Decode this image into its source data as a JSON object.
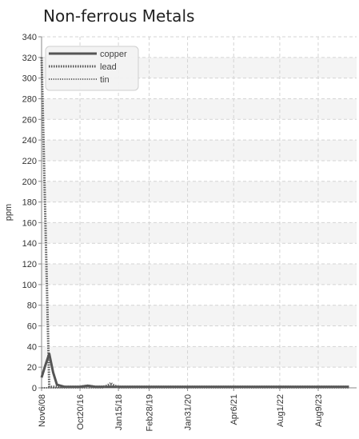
{
  "chart_data": {
    "type": "line",
    "title": "Non-ferrous Metals",
    "ylabel": "ppm",
    "xlabel": "",
    "ylim": [
      0,
      340
    ],
    "yticks": [
      0,
      20,
      40,
      60,
      80,
      100,
      120,
      140,
      160,
      180,
      200,
      220,
      240,
      260,
      280,
      300,
      320,
      340
    ],
    "categories": [
      "Nov6/08",
      "Oct20/16",
      "Jan15/18",
      "Feb28/19",
      "Jan31/20",
      "Apr6/21",
      "Aug1/22",
      "Aug9/23"
    ],
    "grid": true,
    "legend_position": "top-left",
    "series": [
      {
        "name": "copper",
        "style": "solid",
        "color": "#555555",
        "x": [
          0,
          0.5,
          1,
          1.5,
          2,
          2.5,
          3,
          3.5,
          4,
          5,
          6,
          7,
          8,
          9,
          10,
          12,
          14,
          15,
          16,
          20,
          24,
          28,
          32,
          36,
          40
        ],
        "values": [
          10,
          22,
          33,
          15,
          3,
          2,
          1,
          1,
          1,
          1,
          2,
          1,
          1,
          1,
          1,
          1,
          1,
          1,
          1,
          1,
          1,
          1,
          1,
          1,
          1
        ]
      },
      {
        "name": "lead",
        "style": "dotted-thick",
        "color": "#555555",
        "x": [
          0,
          1,
          2,
          3,
          4,
          5,
          6,
          7,
          8,
          9,
          10,
          12,
          14,
          15,
          16,
          20,
          24,
          28,
          32,
          36,
          40
        ],
        "values": [
          320,
          1,
          1,
          1,
          1,
          1,
          2,
          1,
          1,
          3,
          1,
          1,
          1,
          1,
          1,
          1,
          1,
          1,
          1,
          1,
          1
        ]
      },
      {
        "name": "tin",
        "style": "dotted",
        "color": "#666666",
        "x": [
          0,
          1,
          2,
          3,
          4,
          5,
          6,
          7,
          8,
          9,
          10,
          12,
          14,
          15,
          16,
          20,
          24,
          28,
          32,
          36,
          40
        ],
        "values": [
          0,
          0,
          0,
          0,
          0,
          0,
          0,
          0,
          0,
          5,
          0,
          0,
          0,
          0,
          0,
          0,
          0,
          0,
          0,
          0,
          0
        ]
      }
    ],
    "x_tick_positions": [
      0,
      5,
      10,
      14,
      19,
      25,
      31,
      36
    ],
    "x_max": 41
  }
}
